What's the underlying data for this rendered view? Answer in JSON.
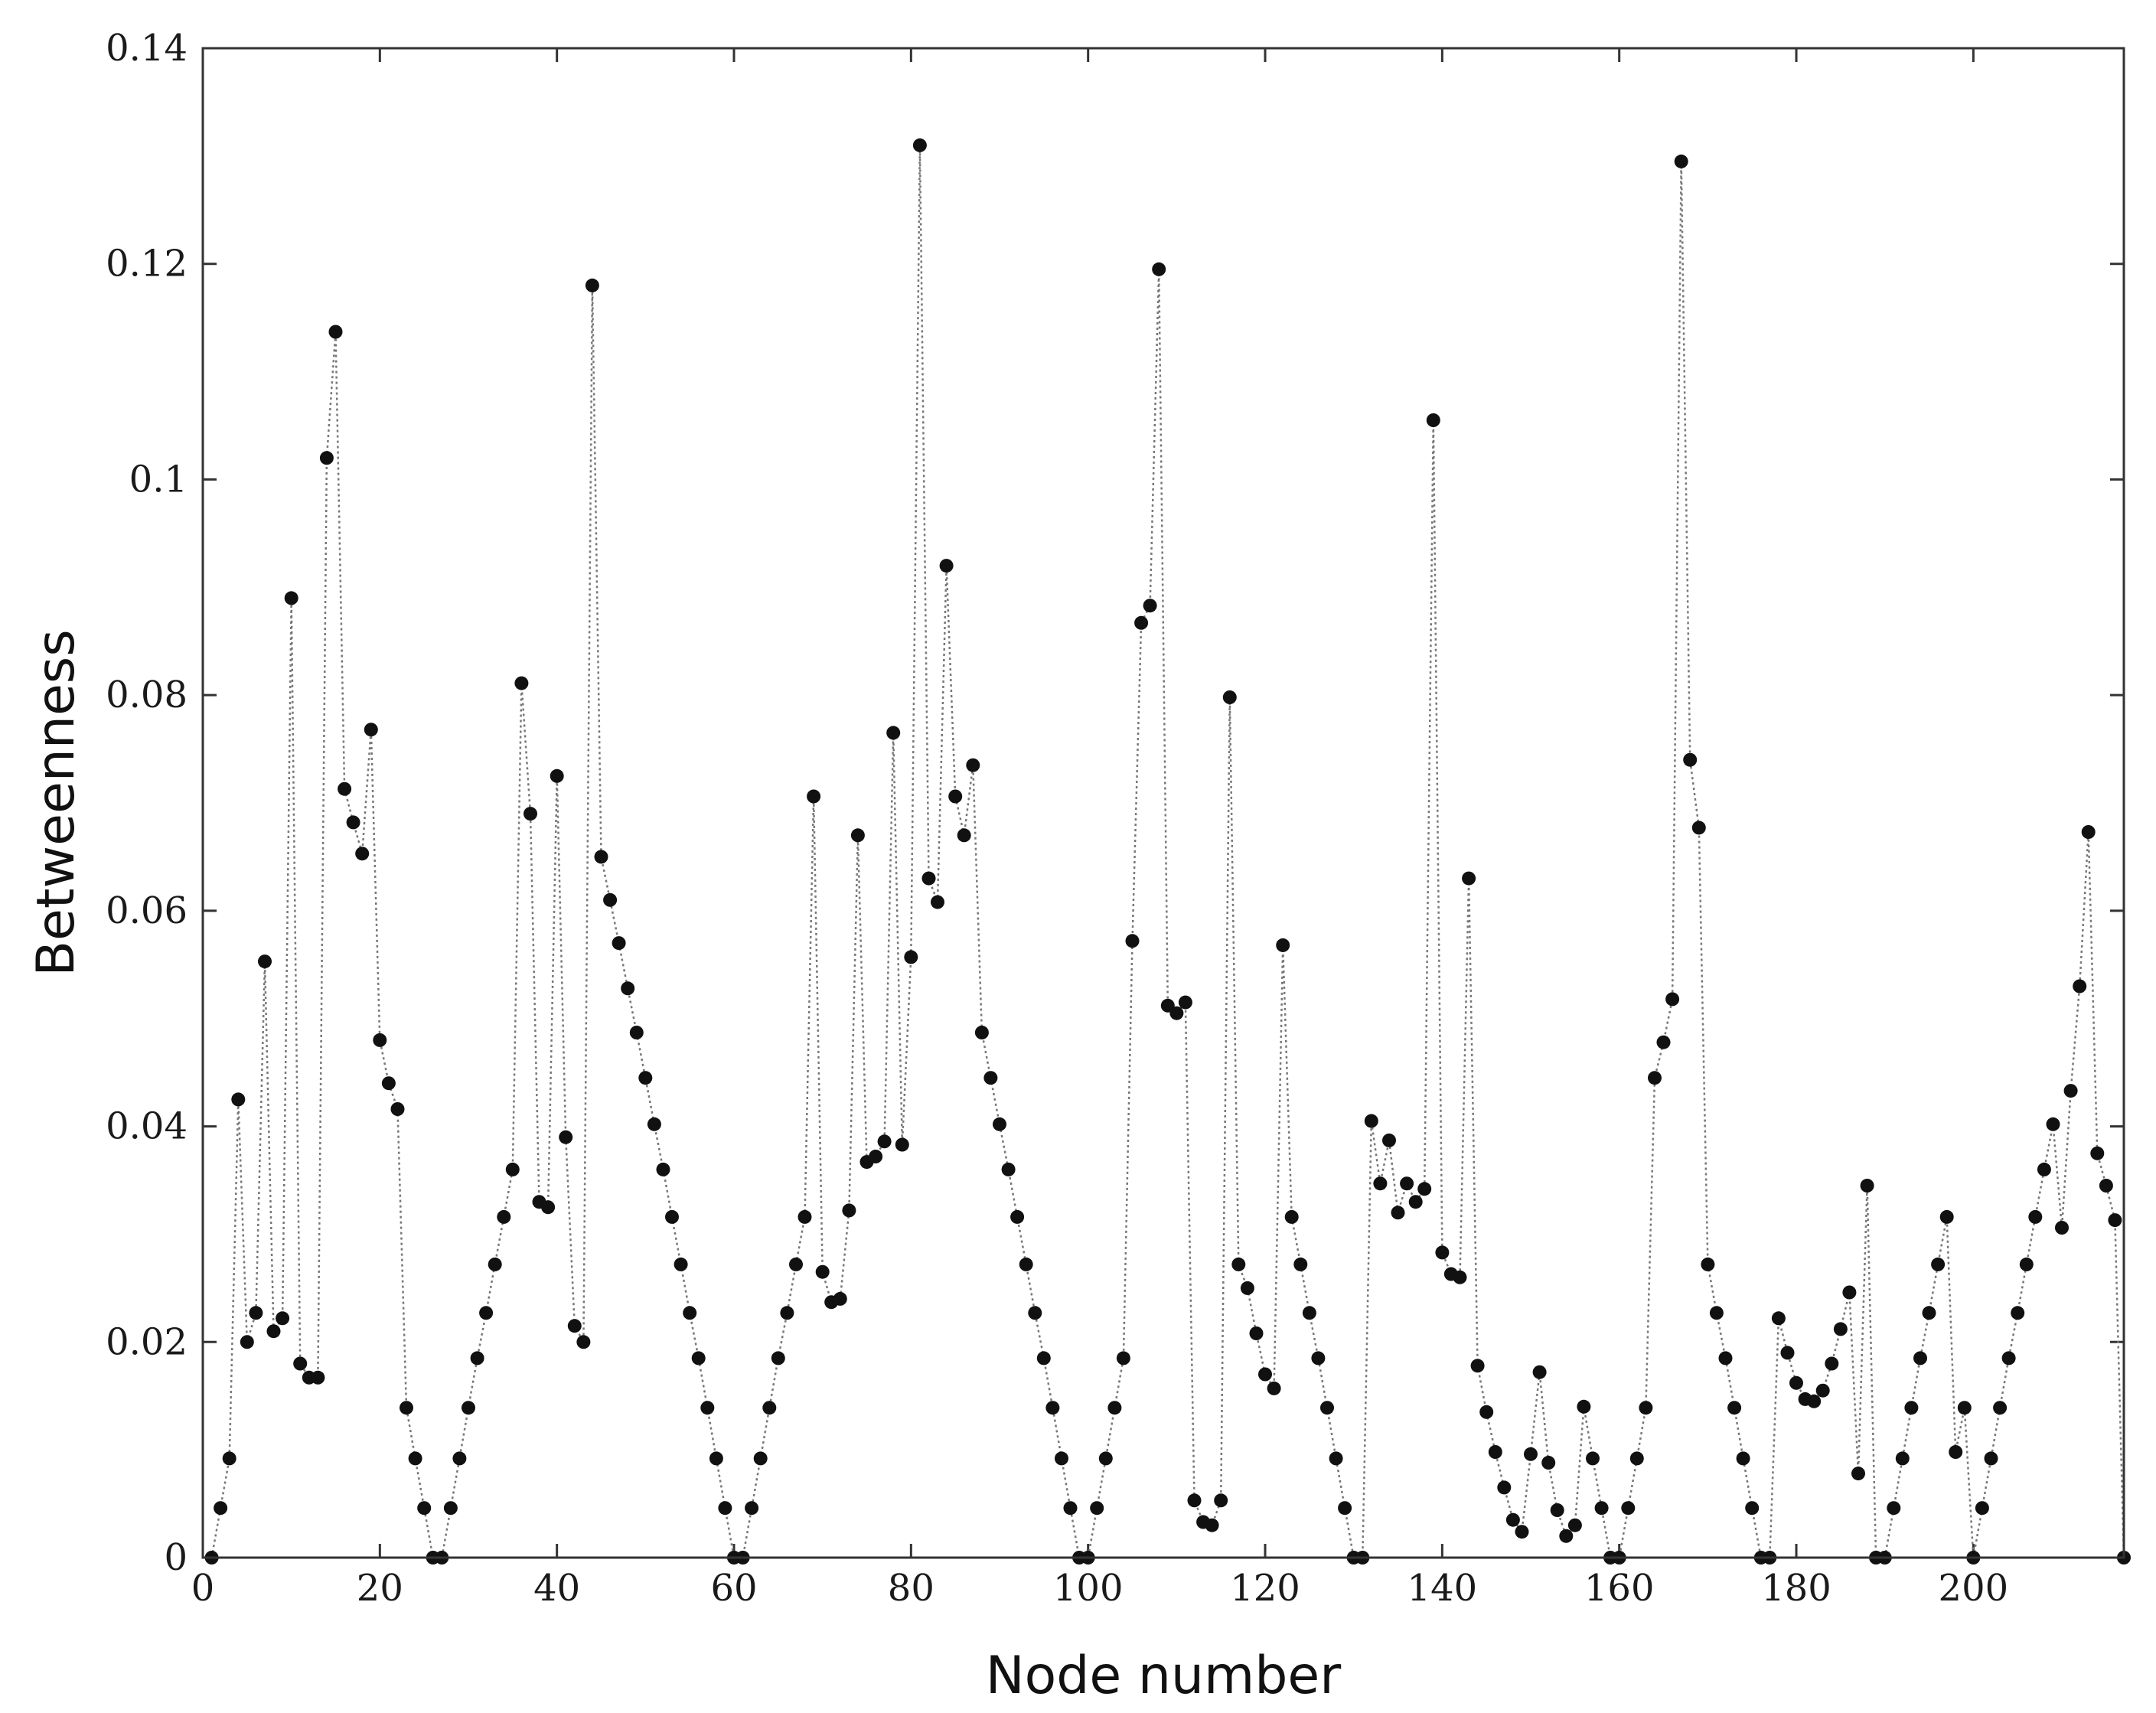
{
  "chart_data": {
    "type": "scatter",
    "xlabel": "Node number",
    "ylabel": "Betweenness",
    "xlim": [
      0,
      217
    ],
    "ylim": [
      0,
      0.14
    ],
    "xticks": [
      0,
      20,
      40,
      60,
      80,
      100,
      120,
      140,
      160,
      180,
      200
    ],
    "xtick_labels": [
      "0",
      "20",
      "40",
      "60",
      "80",
      "100",
      "120",
      "140",
      "160",
      "180",
      "200"
    ],
    "yticks": [
      0,
      0.02,
      0.04,
      0.06,
      0.08,
      0.1,
      0.12,
      0.14
    ],
    "ytick_labels": [
      "0",
      "0.02",
      "0.04",
      "0.06",
      "0.08",
      "0.1",
      "0.12",
      "0.14"
    ],
    "grid": false,
    "legend": "none",
    "marker_color": "#111111",
    "line_color": "#777777",
    "line_style": "dotted",
    "series": [
      {
        "x": [
          1,
          2,
          3,
          4,
          5,
          6,
          7,
          8,
          9,
          10,
          11,
          12,
          13,
          14,
          15,
          16,
          17,
          18,
          19,
          20,
          21,
          22,
          23,
          24,
          25,
          26,
          27,
          28,
          29,
          30,
          31,
          32,
          33,
          34,
          35,
          36,
          37,
          38,
          39,
          40,
          41,
          42,
          43,
          44,
          45,
          46,
          47,
          48,
          49,
          50,
          51,
          52,
          53,
          54,
          55,
          56,
          57,
          58,
          59,
          60,
          61,
          62,
          63,
          64,
          65,
          66,
          67,
          68,
          69,
          70,
          71,
          72,
          73,
          74,
          75,
          76,
          77,
          78,
          79,
          80,
          81,
          82,
          83,
          84,
          85,
          86,
          87,
          88,
          89,
          90,
          91,
          92,
          93,
          94,
          95,
          96,
          97,
          98,
          99,
          100,
          101,
          102,
          103,
          104,
          105,
          106,
          107,
          108,
          109,
          110,
          111,
          112,
          113,
          114,
          115,
          116,
          117,
          118,
          119,
          120,
          121,
          122,
          123,
          124,
          125,
          126,
          127,
          128,
          129,
          130,
          131,
          132,
          133,
          134,
          135,
          136,
          137,
          138,
          139,
          140,
          141,
          142,
          143,
          144,
          145,
          146,
          147,
          148,
          149,
          150,
          151,
          152,
          153,
          154,
          155,
          156,
          157,
          158,
          159,
          160,
          161,
          162,
          163,
          164,
          165,
          166,
          167,
          168,
          169,
          170,
          171,
          172,
          173,
          174,
          175,
          176,
          177,
          178,
          179,
          180,
          181,
          182,
          183,
          184,
          185,
          186,
          187,
          188,
          189,
          190,
          191,
          192,
          193,
          194,
          195,
          196,
          197,
          198,
          199,
          200,
          201,
          202,
          203,
          204,
          205,
          206,
          207,
          208,
          209,
          210,
          211,
          212,
          213,
          214,
          215,
          216,
          217
        ],
        "y": [
          0.0,
          0.0046,
          0.0092,
          0.0425,
          0.02,
          0.0227,
          0.0553,
          0.021,
          0.0222,
          0.089,
          0.018,
          0.0167,
          0.0167,
          0.102,
          0.1137,
          0.0713,
          0.0682,
          0.0653,
          0.0768,
          0.048,
          0.044,
          0.0416,
          0.0139,
          0.0092,
          0.0046,
          0.0,
          0.0,
          0.0046,
          0.0092,
          0.0139,
          0.0185,
          0.0227,
          0.0272,
          0.0316,
          0.036,
          0.0811,
          0.069,
          0.033,
          0.0325,
          0.0725,
          0.039,
          0.0215,
          0.02,
          0.118,
          0.065,
          0.061,
          0.057,
          0.0528,
          0.0487,
          0.0445,
          0.0402,
          0.036,
          0.0316,
          0.0272,
          0.0227,
          0.0185,
          0.0139,
          0.0092,
          0.0046,
          0.0,
          0.0,
          0.0046,
          0.0092,
          0.0139,
          0.0185,
          0.0227,
          0.0272,
          0.0316,
          0.0706,
          0.0265,
          0.0237,
          0.024,
          0.0322,
          0.067,
          0.0367,
          0.0372,
          0.0386,
          0.0765,
          0.0383,
          0.0557,
          0.131,
          0.063,
          0.0608,
          0.092,
          0.0706,
          0.067,
          0.0735,
          0.0487,
          0.0445,
          0.0402,
          0.036,
          0.0316,
          0.0272,
          0.0227,
          0.0185,
          0.0139,
          0.0092,
          0.0046,
          0.0,
          0.0,
          0.0046,
          0.0092,
          0.0139,
          0.0185,
          0.0572,
          0.0867,
          0.0883,
          0.1195,
          0.0512,
          0.0505,
          0.0515,
          0.0053,
          0.0033,
          0.003,
          0.0053,
          0.0798,
          0.0272,
          0.025,
          0.0208,
          0.017,
          0.0157,
          0.0568,
          0.0316,
          0.0272,
          0.0227,
          0.0185,
          0.0139,
          0.0092,
          0.0046,
          0.0,
          0.0,
          0.0405,
          0.0347,
          0.0387,
          0.032,
          0.0347,
          0.033,
          0.0342,
          0.1055,
          0.0283,
          0.0263,
          0.026,
          0.063,
          0.0178,
          0.0135,
          0.0098,
          0.0065,
          0.0035,
          0.0024,
          0.0096,
          0.0172,
          0.0088,
          0.0044,
          0.002,
          0.003,
          0.014,
          0.0092,
          0.0046,
          0.0,
          0.0,
          0.0046,
          0.0092,
          0.0139,
          0.0445,
          0.0478,
          0.0518,
          0.1295,
          0.074,
          0.0677,
          0.0272,
          0.0227,
          0.0185,
          0.0139,
          0.0092,
          0.0046,
          0.0,
          0.0,
          0.0222,
          0.019,
          0.0162,
          0.0147,
          0.0145,
          0.0155,
          0.018,
          0.0212,
          0.0246,
          0.0078,
          0.0345,
          0.0,
          0.0,
          0.0046,
          0.0092,
          0.0139,
          0.0185,
          0.0227,
          0.0272,
          0.0316,
          0.0098,
          0.0139,
          0.0,
          0.0046,
          0.0092,
          0.0139,
          0.0185,
          0.0227,
          0.0272,
          0.0316,
          0.036,
          0.0402,
          0.0306,
          0.0433,
          0.053,
          0.0673,
          0.0375,
          0.0345,
          0.0313,
          0.0
        ]
      }
    ]
  }
}
